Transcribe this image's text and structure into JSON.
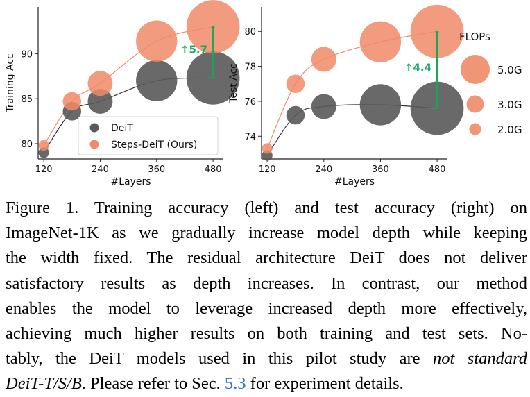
{
  "chart_data": [
    {
      "type": "scatter",
      "panel": "left",
      "ylabel": "Training Acc",
      "xlabel": "#Layers",
      "x_ticks": [
        120,
        240,
        360,
        480
      ],
      "y_ticks": [
        80,
        85,
        90
      ],
      "xlim": [
        108,
        502
      ],
      "ylim": [
        78.3,
        95.2
      ],
      "series": [
        {
          "name": "DeiT",
          "color": "#595959",
          "x": [
            120,
            180,
            240,
            360,
            480
          ],
          "y": [
            79.0,
            83.6,
            84.7,
            87.0,
            87.3
          ],
          "flops": [
            0.2,
            0.6,
            1.1,
            3.0,
            5.0
          ]
        },
        {
          "name": "Steps-DeiT (Ours)",
          "color": "#f08a68",
          "x": [
            120,
            180,
            240,
            360,
            480
          ],
          "y": [
            79.8,
            84.7,
            86.7,
            91.4,
            93.0
          ],
          "flops": [
            0.2,
            0.6,
            1.1,
            3.0,
            5.0
          ]
        }
      ],
      "annotation": {
        "text": "↑5.7",
        "x": 480,
        "y_from": 87.3,
        "y_to": 93.0,
        "color": "#13a85a"
      },
      "legend": {
        "position": "bottom-right",
        "entries": [
          "DeiT",
          "Steps-DeiT (Ours)"
        ]
      }
    },
    {
      "type": "scatter",
      "panel": "right",
      "ylabel": "Test Acc",
      "xlabel": "#Layers",
      "x_ticks": [
        120,
        240,
        360,
        480
      ],
      "y_ticks": [
        74,
        76,
        78,
        80
      ],
      "xlim": [
        108,
        502
      ],
      "ylim": [
        72.7,
        81.4
      ],
      "series": [
        {
          "name": "DeiT",
          "color": "#595959",
          "x": [
            120,
            180,
            240,
            360,
            480
          ],
          "y": [
            72.9,
            75.2,
            75.7,
            75.8,
            75.6
          ],
          "flops": [
            0.2,
            0.6,
            1.1,
            3.0,
            5.0
          ]
        },
        {
          "name": "Steps-DeiT (Ours)",
          "color": "#f08a68",
          "x": [
            120,
            180,
            240,
            360,
            480
          ],
          "y": [
            73.3,
            77.0,
            78.4,
            79.4,
            80.0
          ],
          "flops": [
            0.2,
            0.6,
            1.1,
            3.0,
            5.0
          ]
        }
      ],
      "annotation": {
        "text": "↑4.4",
        "x": 480,
        "y_from": 75.6,
        "y_to": 80.0,
        "color": "#13a85a"
      }
    }
  ],
  "flops_legend": {
    "title": "FLOPs",
    "entries": [
      {
        "label": "5.0G",
        "flops": 5.0
      },
      {
        "label": "3.0G",
        "flops": 3.0
      },
      {
        "label": "2.0G",
        "flops": 2.0
      }
    ],
    "color": "#f08a68"
  },
  "caption": {
    "lines": [
      "Figure 1.  Training accuracy (left) and test accuracy (right) on",
      "ImageNet-1K as we gradually increase model depth while keeping",
      "the width fixed.  The residual architecture DeiT does not deliver",
      "satisfactory results as depth increases.  In contrast, our method",
      "enables the model to leverage increased depth more effectively,",
      "achieving much higher results on both training and test sets.  No-",
      "tably, the DeiT models used in this pilot study are "
    ],
    "italic_1": "not standard",
    "italic_2": "DeiT-T/S/B",
    "after_italic": ". Please refer to Sec. ",
    "section_ref": "5.3",
    "tail": " for experiment details."
  }
}
